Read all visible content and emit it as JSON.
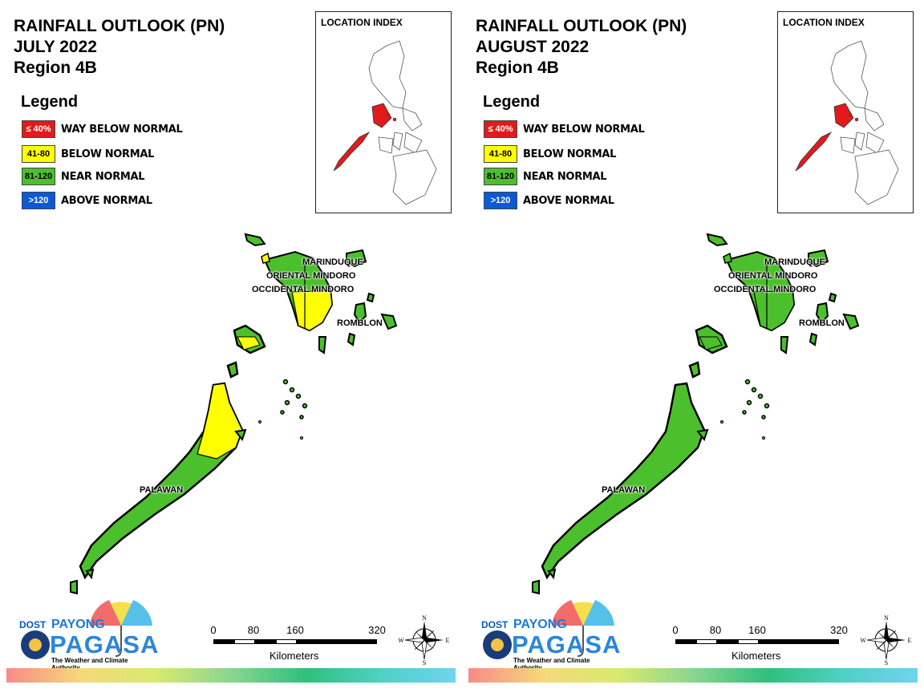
{
  "panels": [
    {
      "title_line1": "RAINFALL OUTLOOK (PN)",
      "title_line2": "JULY 2022",
      "title_line3": "Region 4B",
      "legend_title": "Legend",
      "legend": [
        {
          "swatch": "≤ 40%",
          "label": "WAY BELOW NORMAL",
          "color": "#e31a1c",
          "text_color": "#ffffff"
        },
        {
          "swatch": "41-80",
          "label": "BELOW NORMAL",
          "color": "#ffff00",
          "text_color": "#000000"
        },
        {
          "swatch": "81-120",
          "label": "NEAR NORMAL",
          "color": "#4cc02c",
          "text_color": "#000000"
        },
        {
          "swatch": ">120",
          "label": "ABOVE NORMAL",
          "color": "#0a5ad8",
          "text_color": "#ffffff"
        }
      ],
      "location_index_title": "LOCATION INDEX",
      "provinces": {
        "marinduque": {
          "name": "MARINDUQUE",
          "category": "NEAR NORMAL"
        },
        "oriental_mindoro": {
          "name": "ORIENTAL MINDORO",
          "category": "NEAR NORMAL"
        },
        "occidental_mindoro": {
          "name": "OCCIDENTAL MINDORO",
          "category": "NEAR NORMAL / BELOW NORMAL"
        },
        "romblon": {
          "name": "ROMBLON",
          "category": "NEAR NORMAL"
        },
        "palawan": {
          "name": "PALAWAN",
          "category": "NEAR NORMAL / BELOW NORMAL"
        }
      },
      "colors": {
        "mindoro_south": "#ffff00",
        "palawan_north": "#ffff00"
      }
    },
    {
      "title_line1": "RAINFALL OUTLOOK (PN)",
      "title_line2": "AUGUST 2022",
      "title_line3": "Region 4B",
      "legend_title": "Legend",
      "legend": [
        {
          "swatch": "≤ 40%",
          "label": "WAY BELOW NORMAL",
          "color": "#e31a1c",
          "text_color": "#ffffff"
        },
        {
          "swatch": "41-80",
          "label": "BELOW NORMAL",
          "color": "#ffff00",
          "text_color": "#000000"
        },
        {
          "swatch": "81-120",
          "label": "NEAR NORMAL",
          "color": "#4cc02c",
          "text_color": "#000000"
        },
        {
          "swatch": ">120",
          "label": "ABOVE NORMAL",
          "color": "#0a5ad8",
          "text_color": "#ffffff"
        }
      ],
      "location_index_title": "LOCATION INDEX",
      "provinces": {
        "marinduque": {
          "name": "MARINDUQUE",
          "category": "NEAR NORMAL"
        },
        "oriental_mindoro": {
          "name": "ORIENTAL MINDORO",
          "category": "NEAR NORMAL"
        },
        "occidental_mindoro": {
          "name": "OCCIDENTAL MINDORO",
          "category": "NEAR NORMAL"
        },
        "romblon": {
          "name": "ROMBLON",
          "category": "NEAR NORMAL"
        },
        "palawan": {
          "name": "PALAWAN",
          "category": "NEAR NORMAL"
        }
      },
      "colors": {
        "mindoro_south": "#4cc02c",
        "palawan_north": "#4cc02c"
      }
    }
  ],
  "scale": {
    "ticks": [
      "0",
      "80",
      "160",
      "320"
    ],
    "unit": "Kilometers"
  },
  "compass": {
    "n": "N",
    "e": "E",
    "s": "S",
    "w": "W"
  },
  "logo": {
    "dost": "DOST",
    "payong": "PAYONG",
    "pagasa": "PAGASA",
    "tagline": "The Weather and Climate Authority"
  },
  "colors": {
    "near_normal": "#4cc02c",
    "below_normal": "#ffff00",
    "way_below_normal": "#e31a1c",
    "above_normal": "#0a5ad8"
  }
}
